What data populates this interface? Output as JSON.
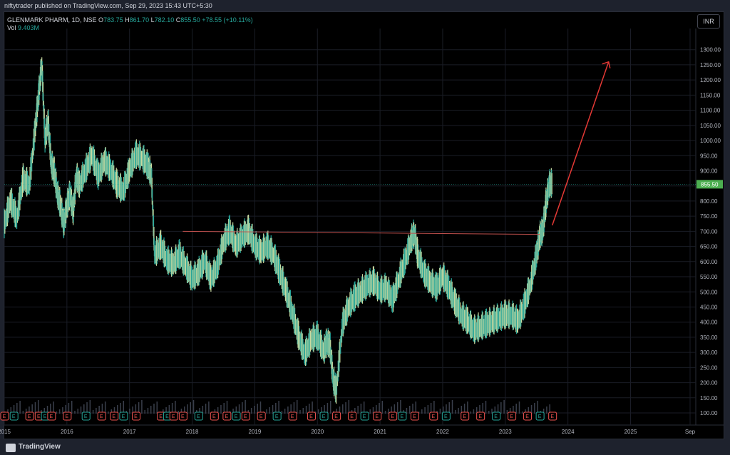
{
  "header": {
    "published": "niftytrader published on TradingView.com, Sep 29, 2023 15:43 UTC+5:30"
  },
  "legend": {
    "symbol": "GLENMARK PHARM, 1D, NSE",
    "o_label": "O",
    "o_value": "783.75",
    "h_label": "H",
    "h_value": "861.70",
    "l_label": "L",
    "l_value": "782.10",
    "c_label": "C",
    "c_value": "855.50",
    "change": "+78.55 (+10.11%)",
    "vol_label": "Vol",
    "vol_value": "9.403M"
  },
  "currency": "INR",
  "footer": {
    "brand": "TradingView"
  },
  "colors": {
    "up": "#26a69a",
    "down": "#ef5350",
    "candle_wick": "#c8d9a0",
    "price_label_bg": "#4caf50",
    "arrow": "#e53935",
    "hline": "#c0504d"
  },
  "chart_data": {
    "type": "line",
    "title": "GLENMARK PHARM, 1D, NSE",
    "xlabel": "",
    "ylabel": "",
    "yticks": [
      "100.00",
      "150.00",
      "200.00",
      "250.00",
      "300.00",
      "350.00",
      "400.00",
      "450.00",
      "500.00",
      "550.00",
      "600.00",
      "650.00",
      "700.00",
      "750.00",
      "800.00",
      "850.00",
      "900.00",
      "950.00",
      "1000.00",
      "1050.00",
      "1100.00",
      "1150.00",
      "1200.00",
      "1250.00",
      "1300.00"
    ],
    "ylim": [
      60,
      1370
    ],
    "xticks": [
      "2015",
      "2016",
      "2017",
      "2018",
      "2019",
      "2020",
      "2021",
      "2022",
      "2023",
      "2024",
      "2025",
      "Sep"
    ],
    "xlim": [
      2015.0,
      2025.7
    ],
    "last_price": "855.50",
    "series": [
      {
        "x": [
          2015.0,
          2015.1,
          2015.2,
          2015.3,
          2015.4,
          2015.5,
          2015.55,
          2015.6,
          2015.65,
          2015.7,
          2015.75,
          2015.8,
          2015.85,
          2015.9,
          2015.95,
          2016.0,
          2016.05,
          2016.1,
          2016.15,
          2016.2,
          2016.3,
          2016.4,
          2016.5,
          2016.6,
          2016.7,
          2016.8,
          2016.9,
          2017.0,
          2017.1,
          2017.2,
          2017.3,
          2017.35,
          2017.4,
          2017.5,
          2017.6,
          2017.7,
          2017.8,
          2017.9,
          2018.0,
          2018.1,
          2018.2,
          2018.3,
          2018.4,
          2018.5,
          2018.6,
          2018.7,
          2018.8,
          2018.9,
          2019.0,
          2019.1,
          2019.2,
          2019.3,
          2019.4,
          2019.5,
          2019.6,
          2019.7,
          2019.8,
          2019.9,
          2020.0,
          2020.1,
          2020.15,
          2020.2,
          2020.25,
          2020.3,
          2020.4,
          2020.5,
          2020.6,
          2020.7,
          2020.8,
          2020.9,
          2021.0,
          2021.1,
          2021.2,
          2021.3,
          2021.4,
          2021.5,
          2021.55,
          2021.6,
          2021.7,
          2021.8,
          2021.9,
          2022.0,
          2022.1,
          2022.2,
          2022.3,
          2022.4,
          2022.5,
          2022.6,
          2022.7,
          2022.8,
          2022.9,
          2023.0,
          2023.1,
          2023.2,
          2023.3,
          2023.4,
          2023.5,
          2023.55,
          2023.6,
          2023.65,
          2023.7,
          2023.75
        ],
        "values": [
          720,
          800,
          740,
          870,
          850,
          1050,
          1150,
          1250,
          1000,
          1060,
          920,
          890,
          820,
          780,
          720,
          780,
          820,
          760,
          880,
          850,
          900,
          950,
          880,
          930,
          900,
          850,
          830,
          900,
          950,
          940,
          910,
          880,
          620,
          650,
          600,
          590,
          620,
          580,
          540,
          560,
          600,
          540,
          580,
          660,
          700,
          650,
          680,
          700,
          650,
          630,
          650,
          620,
          560,
          500,
          430,
          350,
          290,
          340,
          350,
          300,
          330,
          320,
          210,
          170,
          390,
          450,
          480,
          500,
          520,
          530,
          500,
          510,
          470,
          540,
          600,
          670,
          690,
          620,
          560,
          530,
          510,
          550,
          510,
          460,
          420,
          400,
          370,
          380,
          390,
          400,
          410,
          420,
          420,
          400,
          450,
          520,
          620,
          680,
          700,
          790,
          850,
          855.5
        ]
      }
    ],
    "levels": [
      {
        "name": "resistance",
        "value": 700
      }
    ],
    "arrow": {
      "from": [
        2023.75,
        720
      ],
      "to": [
        2024.65,
        1260
      ]
    },
    "events_label": "E"
  }
}
